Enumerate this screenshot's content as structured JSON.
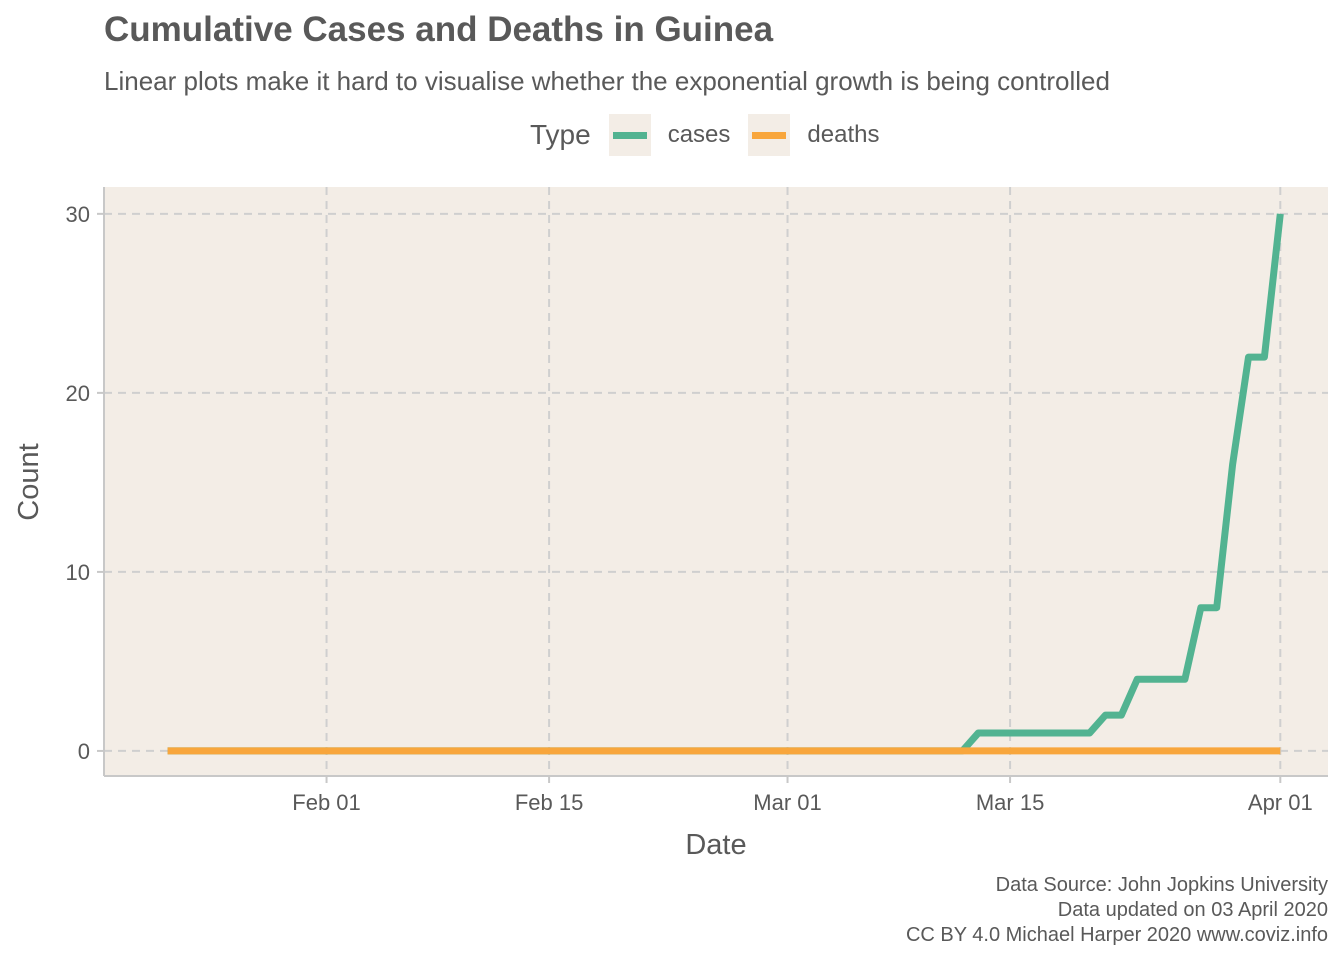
{
  "chart_data": {
    "type": "line",
    "title": "Cumulative Cases and Deaths in Guinea",
    "subtitle": "Linear plots make it hard to visualise whether the exponential growth is being controlled",
    "xlabel": "Date",
    "ylabel": "Count",
    "legend_title": "Type",
    "legend_position": "top",
    "grid": "dashed",
    "x_ticks": [
      {
        "date": "2020-02-01",
        "label": "Feb 01"
      },
      {
        "date": "2020-02-15",
        "label": "Feb 15"
      },
      {
        "date": "2020-03-01",
        "label": "Mar 01"
      },
      {
        "date": "2020-03-15",
        "label": "Mar 15"
      },
      {
        "date": "2020-04-01",
        "label": "Apr 01"
      }
    ],
    "y_ticks": [
      0,
      10,
      20,
      30
    ],
    "xlim": [
      "2020-01-18",
      "2020-04-04"
    ],
    "ylim": [
      -1.4,
      31.5
    ],
    "series": [
      {
        "name": "cases",
        "color": "#52b391",
        "points": [
          [
            "2020-01-22",
            0
          ],
          [
            "2020-03-12",
            0
          ],
          [
            "2020-03-13",
            1
          ],
          [
            "2020-03-20",
            1
          ],
          [
            "2020-03-21",
            2
          ],
          [
            "2020-03-22",
            2
          ],
          [
            "2020-03-23",
            4
          ],
          [
            "2020-03-26",
            4
          ],
          [
            "2020-03-27",
            8
          ],
          [
            "2020-03-28",
            8
          ],
          [
            "2020-03-29",
            16
          ],
          [
            "2020-03-30",
            22
          ],
          [
            "2020-03-31",
            22
          ],
          [
            "2020-04-01",
            30
          ]
        ]
      },
      {
        "name": "deaths",
        "color": "#f8a63c",
        "points": [
          [
            "2020-01-22",
            0
          ],
          [
            "2020-04-01",
            0
          ]
        ]
      }
    ]
  },
  "caption": {
    "line1": "Data Source: John Jopkins University",
    "line2": "Data updated on 03 April 2020",
    "line3": "CC BY 4.0 Michael Harper 2020 www.coviz.info"
  }
}
